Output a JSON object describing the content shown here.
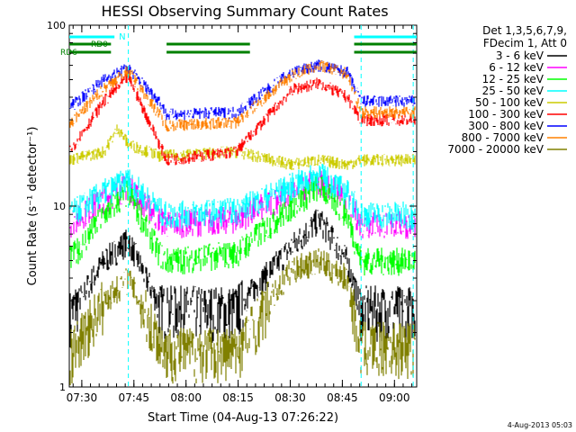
{
  "chart_data": {
    "type": "line",
    "title": "HESSI Observing Summary Count Rates",
    "xlabel": "Start Time (04-Aug-13 07:26:22)",
    "ylabel": "Count Rate (s⁻¹ detector⁻¹)",
    "yscale": "log",
    "ylim": [
      1,
      100
    ],
    "xlim_minutes": [
      0,
      100
    ],
    "x_ticks": [
      "07:30",
      "07:45",
      "08:00",
      "08:15",
      "08:30",
      "08:45",
      "09:00"
    ],
    "y_ticks": [
      "1",
      "10",
      "100"
    ],
    "legend_header": [
      "Det 1,3,5,6,7,9,",
      "FDecim 1, Att 0"
    ],
    "legend_position": "right",
    "footer_date": "4-Aug-2013 05:03",
    "flags": {
      "N": {
        "label": "N",
        "color": "#00ffff",
        "segments": [
          [
            0,
            13
          ],
          [
            82,
            100
          ]
        ]
      },
      "RD0": {
        "label": "RD0",
        "color": "#008000",
        "segments": [
          [
            0,
            12
          ],
          [
            28,
            52
          ],
          [
            82,
            100
          ]
        ]
      },
      "RD6": {
        "label": "RD6",
        "color": "#008000",
        "segments": [
          [
            0,
            12
          ],
          [
            28,
            52
          ],
          [
            82,
            100
          ]
        ]
      }
    },
    "event_lines_minutes": [
      17,
      84,
      99
    ],
    "series": [
      {
        "name": "3 - 6 keV",
        "color": "#000000",
        "points": [
          [
            0,
            2.5
          ],
          [
            10,
            5
          ],
          [
            17,
            6.5
          ],
          [
            26,
            2.8
          ],
          [
            28,
            2.7
          ],
          [
            48,
            2.7
          ],
          [
            64,
            6
          ],
          [
            72,
            8.5
          ],
          [
            80,
            5
          ],
          [
            84,
            2.7
          ],
          [
            100,
            2.7
          ]
        ]
      },
      {
        "name": "6 - 12 keV",
        "color": "#ff00ff",
        "points": [
          [
            0,
            8
          ],
          [
            10,
            11
          ],
          [
            17,
            13
          ],
          [
            26,
            8.5
          ],
          [
            28,
            8
          ],
          [
            48,
            8.5
          ],
          [
            64,
            12
          ],
          [
            72,
            14
          ],
          [
            80,
            11
          ],
          [
            84,
            8
          ],
          [
            100,
            8
          ]
        ]
      },
      {
        "name": "12 - 25 keV",
        "color": "#00ff00",
        "points": [
          [
            0,
            5
          ],
          [
            10,
            9
          ],
          [
            17,
            12
          ],
          [
            26,
            5.5
          ],
          [
            28,
            5
          ],
          [
            48,
            5.5
          ],
          [
            64,
            10
          ],
          [
            72,
            13
          ],
          [
            80,
            9
          ],
          [
            84,
            5
          ],
          [
            100,
            5
          ]
        ]
      },
      {
        "name": "25 - 50 keV",
        "color": "#00ffff",
        "points": [
          [
            0,
            9
          ],
          [
            10,
            12
          ],
          [
            17,
            14
          ],
          [
            26,
            9.5
          ],
          [
            28,
            9
          ],
          [
            48,
            9.5
          ],
          [
            64,
            13
          ],
          [
            72,
            15
          ],
          [
            80,
            12
          ],
          [
            84,
            9
          ],
          [
            100,
            9
          ]
        ]
      },
      {
        "name": "50 - 100 keV",
        "color": "#cccc00",
        "points": [
          [
            0,
            18
          ],
          [
            10,
            20
          ],
          [
            14,
            27
          ],
          [
            17,
            22
          ],
          [
            26,
            19
          ],
          [
            28,
            19
          ],
          [
            48,
            20
          ],
          [
            64,
            17
          ],
          [
            72,
            18
          ],
          [
            80,
            17
          ],
          [
            84,
            18
          ],
          [
            100,
            18
          ]
        ]
      },
      {
        "name": "100 - 300 keV",
        "color": "#ff0000",
        "points": [
          [
            0,
            20
          ],
          [
            10,
            38
          ],
          [
            17,
            52
          ],
          [
            26,
            22
          ],
          [
            28,
            18
          ],
          [
            48,
            20
          ],
          [
            64,
            44
          ],
          [
            72,
            48
          ],
          [
            80,
            40
          ],
          [
            84,
            30
          ],
          [
            100,
            30
          ]
        ]
      },
      {
        "name": "300 - 800 keV",
        "color": "#0000ff",
        "points": [
          [
            0,
            35
          ],
          [
            10,
            50
          ],
          [
            17,
            58
          ],
          [
            26,
            38
          ],
          [
            28,
            32
          ],
          [
            48,
            33
          ],
          [
            64,
            55
          ],
          [
            72,
            60
          ],
          [
            80,
            55
          ],
          [
            84,
            38
          ],
          [
            100,
            38
          ]
        ]
      },
      {
        "name": "800 - 7000 keV",
        "color": "#ff8000",
        "points": [
          [
            0,
            28
          ],
          [
            10,
            45
          ],
          [
            17,
            56
          ],
          [
            26,
            32
          ],
          [
            28,
            28
          ],
          [
            48,
            29
          ],
          [
            64,
            53
          ],
          [
            72,
            60
          ],
          [
            80,
            54
          ],
          [
            84,
            33
          ],
          [
            100,
            33
          ]
        ]
      },
      {
        "name": "7000 - 20000 keV",
        "color": "#808000",
        "points": [
          [
            0,
            1.5
          ],
          [
            10,
            3
          ],
          [
            17,
            4
          ],
          [
            26,
            1.8
          ],
          [
            28,
            1.6
          ],
          [
            48,
            1.6
          ],
          [
            64,
            4.5
          ],
          [
            72,
            5
          ],
          [
            80,
            4
          ],
          [
            84,
            1.7
          ],
          [
            100,
            1.7
          ]
        ]
      }
    ]
  }
}
